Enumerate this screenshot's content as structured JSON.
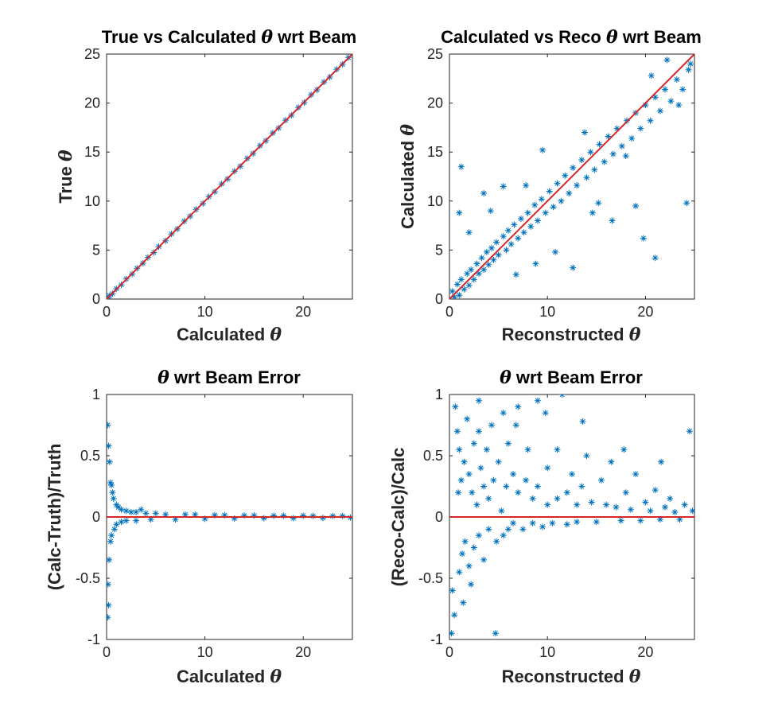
{
  "chart_data": [
    {
      "type": "scatter",
      "title_text": "True vs Calculated",
      "title_symbol": "θ",
      "title_suffix": "wrt Beam",
      "xlabel_text": "Calculated",
      "xlabel_symbol": "θ",
      "ylabel_text": "True",
      "ylabel_symbol": "θ",
      "xlim": [
        0,
        25
      ],
      "ylim": [
        0,
        25
      ],
      "xticks": [
        0,
        10,
        20
      ],
      "yticks": [
        0,
        5,
        10,
        15,
        20,
        25
      ],
      "marker": "asterisk",
      "marker_color": "#0072bd",
      "reference_line": {
        "from": [
          0,
          0
        ],
        "to": [
          25,
          25
        ],
        "color": "#d62728"
      },
      "points": [
        [
          0.1,
          0.1
        ],
        [
          0.3,
          0.35
        ],
        [
          0.6,
          0.55
        ],
        [
          1.0,
          1.05
        ],
        [
          1.5,
          1.45
        ],
        [
          2.0,
          2.05
        ],
        [
          2.6,
          2.55
        ],
        [
          3.1,
          3.15
        ],
        [
          3.7,
          3.65
        ],
        [
          4.2,
          4.25
        ],
        [
          4.8,
          4.75
        ],
        [
          5.3,
          5.35
        ],
        [
          6.0,
          5.95
        ],
        [
          6.6,
          6.65
        ],
        [
          7.2,
          7.15
        ],
        [
          7.9,
          7.95
        ],
        [
          8.5,
          8.45
        ],
        [
          9.1,
          9.15
        ],
        [
          9.8,
          9.75
        ],
        [
          10.4,
          10.45
        ],
        [
          11.0,
          10.95
        ],
        [
          11.7,
          11.75
        ],
        [
          12.3,
          12.25
        ],
        [
          13.0,
          13.05
        ],
        [
          13.6,
          13.55
        ],
        [
          14.3,
          14.35
        ],
        [
          14.9,
          14.85
        ],
        [
          15.6,
          15.65
        ],
        [
          16.2,
          16.15
        ],
        [
          16.9,
          16.95
        ],
        [
          17.5,
          17.45
        ],
        [
          18.2,
          18.25
        ],
        [
          18.8,
          18.75
        ],
        [
          19.5,
          19.55
        ],
        [
          20.1,
          20.05
        ],
        [
          20.8,
          20.85
        ],
        [
          21.4,
          21.35
        ],
        [
          22.1,
          22.15
        ],
        [
          22.7,
          22.65
        ],
        [
          23.4,
          23.45
        ],
        [
          24.0,
          23.95
        ],
        [
          24.6,
          24.65
        ]
      ]
    },
    {
      "type": "scatter",
      "title_text": "Calculated vs Reco",
      "title_symbol": "θ",
      "title_suffix": "wrt Beam",
      "xlabel_text": "Reconstructed",
      "xlabel_symbol": "θ",
      "ylabel_text": "Calculated",
      "ylabel_symbol": "θ",
      "xlim": [
        0,
        25
      ],
      "ylim": [
        0,
        25
      ],
      "xticks": [
        0,
        10,
        20
      ],
      "yticks": [
        0,
        5,
        10,
        15,
        20,
        25
      ],
      "marker": "asterisk",
      "marker_color": "#0072bd",
      "reference_line": {
        "from": [
          0,
          0
        ],
        "to": [
          25,
          25
        ],
        "color": "#d62728"
      },
      "points": [
        [
          0.3,
          0.8
        ],
        [
          0.5,
          0.2
        ],
        [
          0.8,
          1.5
        ],
        [
          1.0,
          0.4
        ],
        [
          1.2,
          2.0
        ],
        [
          1.5,
          1.0
        ],
        [
          1.8,
          2.6
        ],
        [
          2.0,
          1.4
        ],
        [
          2.2,
          3.0
        ],
        [
          2.5,
          2.0
        ],
        [
          2.8,
          3.6
        ],
        [
          3.0,
          2.6
        ],
        [
          3.3,
          4.2
        ],
        [
          3.5,
          3.0
        ],
        [
          3.8,
          4.8
        ],
        [
          4.0,
          3.5
        ],
        [
          4.3,
          5.2
        ],
        [
          4.5,
          4.0
        ],
        [
          4.8,
          5.8
        ],
        [
          5.0,
          4.5
        ],
        [
          5.5,
          6.4
        ],
        [
          5.8,
          5.0
        ],
        [
          6.0,
          7.0
        ],
        [
          6.3,
          5.6
        ],
        [
          6.6,
          7.6
        ],
        [
          7.0,
          6.2
        ],
        [
          7.3,
          8.2
        ],
        [
          7.6,
          6.8
        ],
        [
          8.0,
          8.8
        ],
        [
          8.3,
          7.4
        ],
        [
          8.7,
          9.6
        ],
        [
          9.0,
          8.0
        ],
        [
          9.4,
          10.2
        ],
        [
          9.8,
          8.8
        ],
        [
          10.2,
          11.0
        ],
        [
          10.6,
          9.4
        ],
        [
          11.0,
          11.8
        ],
        [
          11.4,
          10.0
        ],
        [
          11.8,
          12.6
        ],
        [
          12.2,
          10.8
        ],
        [
          12.6,
          13.4
        ],
        [
          13.0,
          11.6
        ],
        [
          13.5,
          14.2
        ],
        [
          14.0,
          12.4
        ],
        [
          14.4,
          15.0
        ],
        [
          14.8,
          13.2
        ],
        [
          15.3,
          15.8
        ],
        [
          15.8,
          14.0
        ],
        [
          16.2,
          16.6
        ],
        [
          16.7,
          14.8
        ],
        [
          17.1,
          17.4
        ],
        [
          17.6,
          15.6
        ],
        [
          18.1,
          18.2
        ],
        [
          18.6,
          16.4
        ],
        [
          19.0,
          19.0
        ],
        [
          19.5,
          17.4
        ],
        [
          20.0,
          19.8
        ],
        [
          20.5,
          18.2
        ],
        [
          21.0,
          20.6
        ],
        [
          21.5,
          19.2
        ],
        [
          22.0,
          21.4
        ],
        [
          22.6,
          20.2
        ],
        [
          23.2,
          22.4
        ],
        [
          23.8,
          21.4
        ],
        [
          24.4,
          23.4
        ],
        [
          1.2,
          13.5
        ],
        [
          3.5,
          10.8
        ],
        [
          1.0,
          8.8
        ],
        [
          4.2,
          9.0
        ],
        [
          8.8,
          3.6
        ],
        [
          10.8,
          4.8
        ],
        [
          12.6,
          3.2
        ],
        [
          15.2,
          9.8
        ],
        [
          19.0,
          9.5
        ],
        [
          24.2,
          9.8
        ],
        [
          21.0,
          4.2
        ],
        [
          16.6,
          8.0
        ],
        [
          19.8,
          6.2
        ],
        [
          9.5,
          15.2
        ],
        [
          5.5,
          11.5
        ],
        [
          22.2,
          24.4
        ],
        [
          24.6,
          24.0
        ],
        [
          23.4,
          19.8
        ],
        [
          20.6,
          22.8
        ],
        [
          6.8,
          2.5
        ],
        [
          2.0,
          6.8
        ],
        [
          18.0,
          14.6
        ],
        [
          13.8,
          17.0
        ],
        [
          7.8,
          11.6
        ],
        [
          14.6,
          8.8
        ]
      ]
    },
    {
      "type": "scatter",
      "title_symbol": "θ",
      "title_text": "wrt Beam Error",
      "xlabel_text": "Calculated",
      "xlabel_symbol": "θ",
      "ylabel_text": "(Calc-Truth)/Truth",
      "xlim": [
        0,
        25
      ],
      "ylim": [
        -1,
        1
      ],
      "xticks": [
        0,
        10,
        20
      ],
      "yticks": [
        -1,
        -0.5,
        0,
        0.5,
        1
      ],
      "marker": "asterisk",
      "marker_color": "#0072bd",
      "reference_line": {
        "from": [
          0,
          0
        ],
        "to": [
          25,
          0
        ],
        "color": "#d62728"
      },
      "points": [
        [
          0.1,
          0.75
        ],
        [
          0.2,
          0.58
        ],
        [
          0.3,
          0.45
        ],
        [
          0.15,
          -0.55
        ],
        [
          0.1,
          -0.82
        ],
        [
          0.2,
          -0.72
        ],
        [
          0.25,
          -0.35
        ],
        [
          0.4,
          0.28
        ],
        [
          0.5,
          0.26
        ],
        [
          0.6,
          0.2
        ],
        [
          0.4,
          -0.2
        ],
        [
          0.5,
          -0.15
        ],
        [
          0.7,
          0.15
        ],
        [
          0.8,
          -0.1
        ],
        [
          1.0,
          0.1
        ],
        [
          1.0,
          -0.06
        ],
        [
          1.2,
          0.08
        ],
        [
          1.5,
          0.06
        ],
        [
          1.5,
          -0.04
        ],
        [
          2.0,
          0.05
        ],
        [
          2.0,
          -0.03
        ],
        [
          2.5,
          0.04
        ],
        [
          3.0,
          0.04
        ],
        [
          3.0,
          -0.03
        ],
        [
          3.5,
          0.06
        ],
        [
          4.0,
          0.03
        ],
        [
          4.5,
          -0.02
        ],
        [
          5.0,
          0.03
        ],
        [
          6.0,
          0.02
        ],
        [
          7.0,
          -0.02
        ],
        [
          8.0,
          0.02
        ],
        [
          9.0,
          0.02
        ],
        [
          10.0,
          -0.015
        ],
        [
          11.0,
          0.015
        ],
        [
          12.0,
          0.015
        ],
        [
          13.0,
          -0.012
        ],
        [
          14.0,
          0.012
        ],
        [
          15.0,
          0.012
        ],
        [
          16.0,
          -0.01
        ],
        [
          17.0,
          0.01
        ],
        [
          18.0,
          0.01
        ],
        [
          19.0,
          -0.01
        ],
        [
          20.0,
          0.01
        ],
        [
          21.0,
          0.008
        ],
        [
          22.0,
          -0.008
        ],
        [
          23.0,
          0.008
        ],
        [
          24.0,
          0.008
        ],
        [
          24.8,
          -0.005
        ]
      ]
    },
    {
      "type": "scatter",
      "title_symbol": "θ",
      "title_text": "wrt Beam Error",
      "xlabel_text": "Reconstructed",
      "xlabel_symbol": "θ",
      "ylabel_text": "(Reco-Calc)/Calc",
      "xlim": [
        0,
        25
      ],
      "ylim": [
        -1,
        1
      ],
      "xticks": [
        0,
        10,
        20
      ],
      "yticks": [
        -1,
        -0.5,
        0,
        0.5,
        1
      ],
      "marker": "asterisk",
      "marker_color": "#0072bd",
      "reference_line": {
        "from": [
          0,
          0
        ],
        "to": [
          25,
          0
        ],
        "color": "#d62728"
      },
      "points": [
        [
          0.2,
          -0.95
        ],
        [
          0.3,
          -0.6
        ],
        [
          0.5,
          -0.8
        ],
        [
          0.6,
          0.9
        ],
        [
          0.8,
          0.7
        ],
        [
          1.0,
          -0.45
        ],
        [
          1.0,
          0.55
        ],
        [
          1.2,
          0.3
        ],
        [
          1.3,
          -0.3
        ],
        [
          1.5,
          0.45
        ],
        [
          1.6,
          -0.2
        ],
        [
          1.8,
          0.8
        ],
        [
          2.0,
          0.35
        ],
        [
          2.0,
          -0.4
        ],
        [
          2.3,
          0.2
        ],
        [
          2.5,
          0.6
        ],
        [
          2.5,
          -0.25
        ],
        [
          2.8,
          0.1
        ],
        [
          3.0,
          0.95
        ],
        [
          3.0,
          -0.15
        ],
        [
          3.2,
          0.4
        ],
        [
          3.5,
          0.25
        ],
        [
          3.5,
          -0.35
        ],
        [
          3.8,
          0.55
        ],
        [
          4.0,
          0.15
        ],
        [
          4.0,
          -0.1
        ],
        [
          4.3,
          0.75
        ],
        [
          4.5,
          0.3
        ],
        [
          4.7,
          -0.95
        ],
        [
          4.8,
          -0.2
        ],
        [
          5.0,
          0.45
        ],
        [
          5.3,
          0.05
        ],
        [
          5.5,
          0.85
        ],
        [
          5.5,
          -0.15
        ],
        [
          5.8,
          0.25
        ],
        [
          6.0,
          0.6
        ],
        [
          6.0,
          -0.1
        ],
        [
          6.5,
          0.35
        ],
        [
          6.5,
          -0.05
        ],
        [
          7.0,
          0.9
        ],
        [
          7.0,
          0.2
        ],
        [
          7.5,
          -0.1
        ],
        [
          7.8,
          0.3
        ],
        [
          8.0,
          0.55
        ],
        [
          8.5,
          0.15
        ],
        [
          8.5,
          -0.05
        ],
        [
          9.0,
          0.95
        ],
        [
          9.0,
          0.25
        ],
        [
          9.5,
          -0.08
        ],
        [
          10.0,
          0.4
        ],
        [
          10.0,
          0.1
        ],
        [
          10.5,
          -0.05
        ],
        [
          11.0,
          0.55
        ],
        [
          11.0,
          0.15
        ],
        [
          11.5,
          1.0
        ],
        [
          12.0,
          0.2
        ],
        [
          12.0,
          -0.06
        ],
        [
          12.5,
          0.35
        ],
        [
          13.0,
          0.1
        ],
        [
          13.0,
          -0.04
        ],
        [
          13.5,
          0.25
        ],
        [
          14.0,
          0.5
        ],
        [
          14.5,
          0.12
        ],
        [
          15.0,
          -0.04
        ],
        [
          15.5,
          0.3
        ],
        [
          16.0,
          0.1
        ],
        [
          16.5,
          0.45
        ],
        [
          17.0,
          0.08
        ],
        [
          17.5,
          -0.03
        ],
        [
          18.0,
          0.2
        ],
        [
          18.5,
          0.06
        ],
        [
          19.0,
          0.35
        ],
        [
          19.5,
          -0.03
        ],
        [
          20.0,
          0.12
        ],
        [
          20.5,
          0.05
        ],
        [
          21.0,
          0.22
        ],
        [
          21.5,
          -0.02
        ],
        [
          22.0,
          0.08
        ],
        [
          22.5,
          0.15
        ],
        [
          23.0,
          0.04
        ],
        [
          23.5,
          -0.02
        ],
        [
          24.0,
          0.1
        ],
        [
          24.5,
          0.7
        ],
        [
          24.8,
          0.05
        ],
        [
          3.0,
          0.7
        ],
        [
          2.2,
          -0.55
        ],
        [
          1.4,
          -0.7
        ],
        [
          0.9,
          0.2
        ],
        [
          6.8,
          0.75
        ],
        [
          9.8,
          0.85
        ],
        [
          13.6,
          0.78
        ],
        [
          17.8,
          0.55
        ],
        [
          21.6,
          0.45
        ]
      ]
    }
  ]
}
